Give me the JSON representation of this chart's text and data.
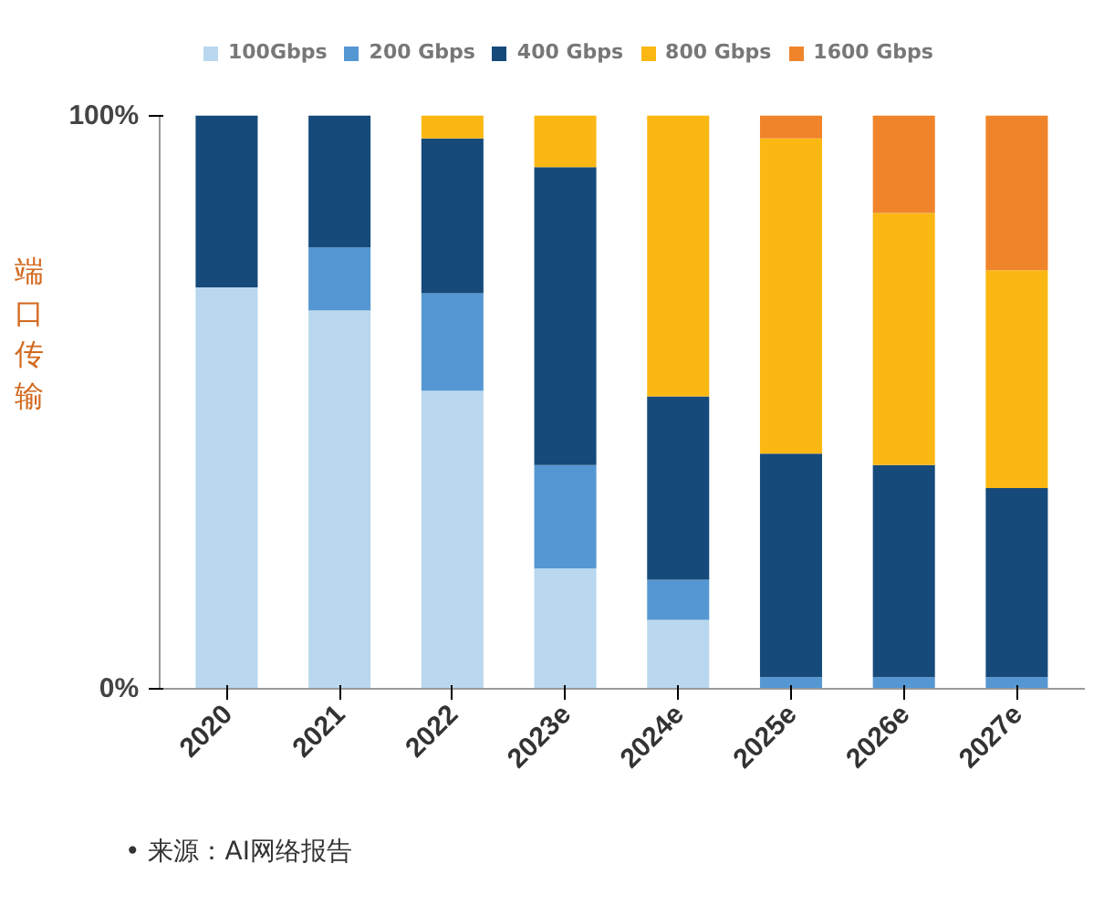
{
  "chart_data": {
    "type": "bar",
    "stacked": true,
    "ylabel": "端口传输",
    "categories": [
      "2020",
      "2021",
      "2022",
      "2023e",
      "2024e",
      "2025e",
      "2026e",
      "2027e"
    ],
    "series": [
      {
        "name": "100Gbps",
        "color": "#b9d7ee",
        "values": [
          70,
          66,
          52,
          21,
          12,
          0,
          0,
          0
        ]
      },
      {
        "name": "200 Gbps",
        "color": "#5597d3",
        "values": [
          0,
          11,
          17,
          18,
          7,
          2,
          2,
          2
        ]
      },
      {
        "name": "400 Gbps",
        "color": "#164a7b",
        "values": [
          30,
          23,
          27,
          52,
          32,
          39,
          37,
          33
        ]
      },
      {
        "name": "800 Gbps",
        "color": "#fbb813",
        "values": [
          0,
          0,
          4,
          9,
          49,
          55,
          44,
          38
        ]
      },
      {
        "name": "1600 Gbps",
        "color": "#f0842b",
        "values": [
          0,
          0,
          0,
          0,
          0,
          4,
          17,
          27
        ]
      }
    ],
    "ylim": [
      0,
      100
    ],
    "yticks": [
      {
        "value": 0,
        "label": "0%"
      },
      {
        "value": 100,
        "label": "100%"
      }
    ],
    "legend": "top",
    "grid": false,
    "annotations": [
      "• 来源：AI网络报告"
    ]
  }
}
